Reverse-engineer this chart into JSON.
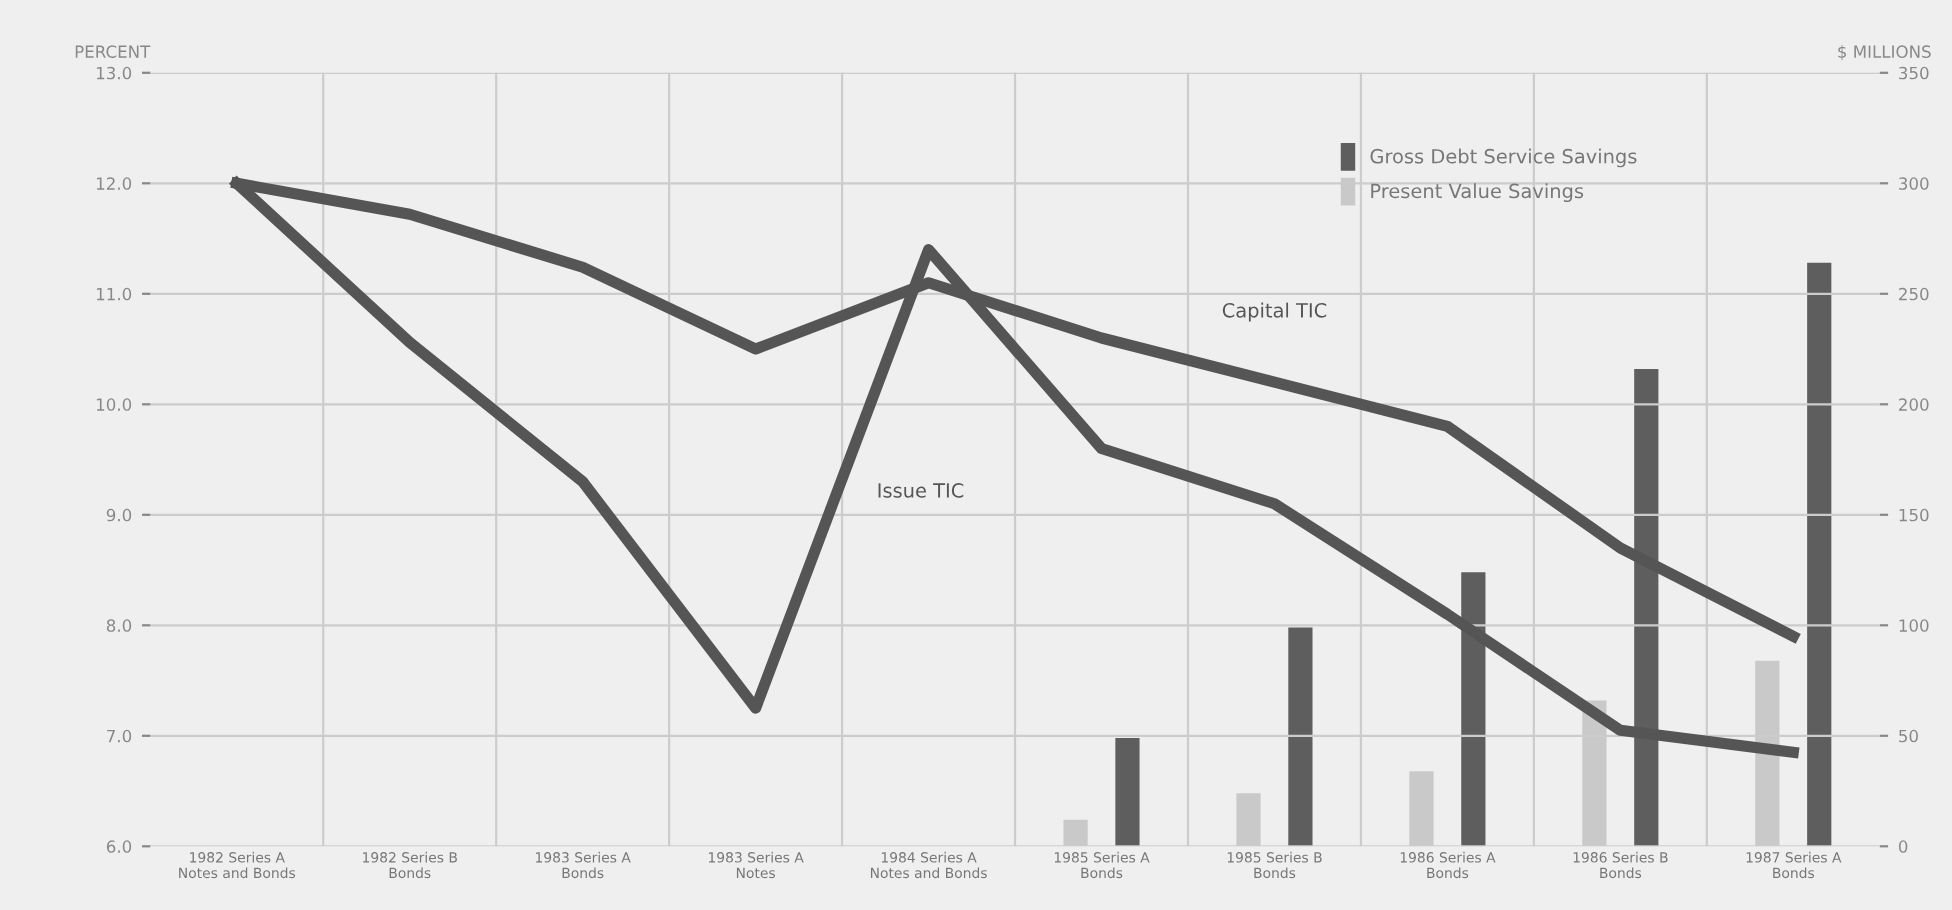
{
  "chart_data": {
    "type": "line",
    "ylabel": "PERCENT",
    "y2label": "$ MILLIONS",
    "categories": [
      "1982 Series A\nNotes and Bonds",
      "1982 Series B\nBonds",
      "1983 Series A\nBonds",
      "1983 Series A\nNotes",
      "1984 Series A\nNotes and Bonds",
      "1985 Series A\nBonds",
      "1985 Series B\nBonds",
      "1986 Series A\nBonds",
      "1986 Series B\nBonds",
      "1987 Series A\nBonds"
    ],
    "series": [
      {
        "name": "Present Value Savings",
        "type": "bar",
        "axis": "y2",
        "color": "#c9c9c9",
        "values": [
          null,
          null,
          null,
          null,
          null,
          12,
          24,
          34,
          66,
          84
        ]
      },
      {
        "name": "Gross Debt Service Savings",
        "type": "bar",
        "axis": "y2",
        "color": "#5e5e5e",
        "values": [
          null,
          null,
          null,
          null,
          null,
          49,
          99,
          124,
          216,
          264
        ]
      },
      {
        "name": "Capital TIC",
        "color": "#555555",
        "values": [
          12.0,
          11.72,
          11.24,
          10.5,
          11.1,
          10.6,
          10.2,
          9.8,
          8.7,
          7.9
        ]
      },
      {
        "name": "Issue TIC",
        "color": "#555555",
        "values": [
          12.0,
          10.56,
          9.3,
          7.25,
          11.4,
          9.6,
          9.1,
          8.1,
          7.05,
          6.85
        ]
      }
    ],
    "ylim": [
      6,
      13
    ],
    "yticks": [
      {
        "value": 6,
        "label": "6.0"
      },
      {
        "value": 7,
        "label": "7.0"
      },
      {
        "value": 8,
        "label": "8.0"
      },
      {
        "value": 9,
        "label": "9.0"
      },
      {
        "value": 10,
        "label": "10.0"
      },
      {
        "value": 11,
        "label": "11.0"
      },
      {
        "value": 12,
        "label": "12.0"
      },
      {
        "value": 13,
        "label": "13.0"
      }
    ],
    "y2lim": [
      0,
      350
    ],
    "y2ticks": [
      0,
      50,
      100,
      150,
      200,
      250,
      300,
      350
    ],
    "grid": true,
    "legend": "top right"
  }
}
